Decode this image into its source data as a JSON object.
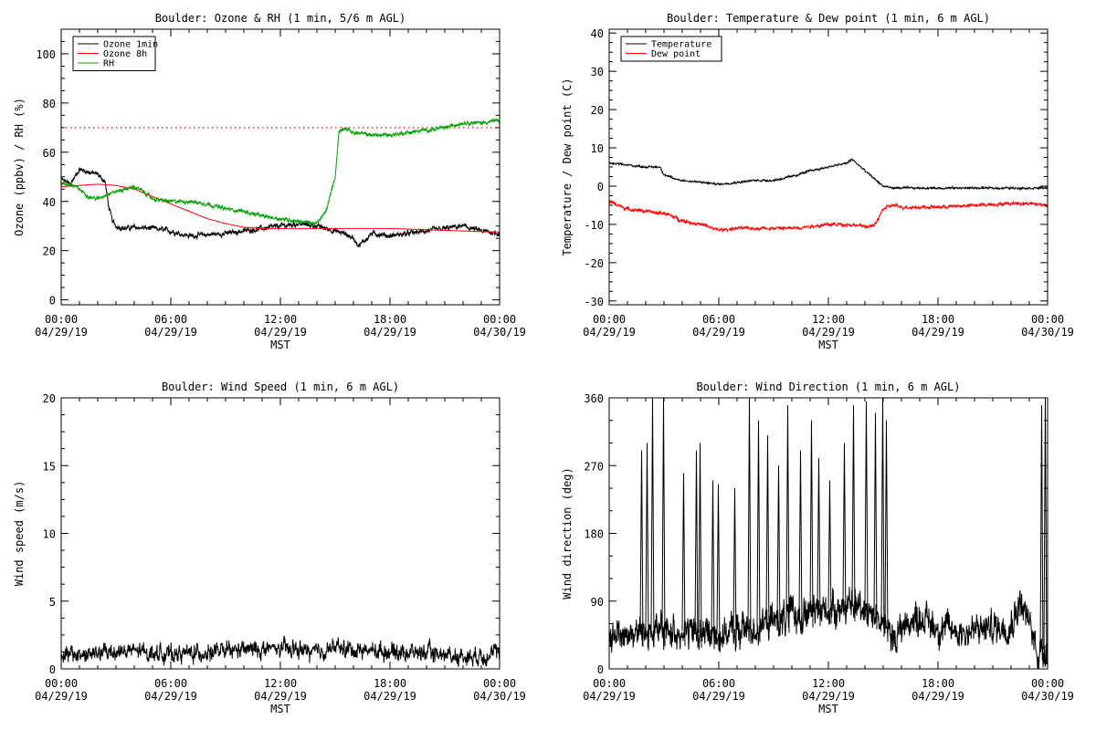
{
  "figure": {
    "background": "#ffffff"
  },
  "chart_data": [
    {
      "id": "ozone",
      "type": "line",
      "title": "Boulder: Ozone & RH (1 min, 5/6 m AGL)",
      "ylabel": "Ozone (ppbv) / RH (%)",
      "xlabel": "MST",
      "xlim": [
        0,
        24
      ],
      "ylim": [
        -2,
        110
      ],
      "yticks": [
        0,
        20,
        40,
        60,
        80,
        100
      ],
      "xticks": [
        {
          "hours": 0,
          "label": "00:00",
          "date": "04/29/19"
        },
        {
          "hours": 6,
          "label": "06:00",
          "date": "04/29/19"
        },
        {
          "hours": 12,
          "label": "12:00",
          "date": "04/29/19"
        },
        {
          "hours": 18,
          "label": "18:00",
          "date": "04/29/19"
        },
        {
          "hours": 24,
          "label": "00:00",
          "date": "04/30/19"
        }
      ],
      "legend": "top-left",
      "reference_line": {
        "y": 70,
        "color": "#ff0000",
        "style": "dotted"
      },
      "series": [
        {
          "name": "Ozone 1min",
          "color": "#000000",
          "noise": 1.2,
          "x": [
            0,
            0.5,
            1,
            1.5,
            2,
            2.4,
            2.6,
            2.8,
            3,
            3.5,
            4,
            5,
            6,
            6.5,
            7,
            8,
            9,
            10,
            11,
            12,
            13,
            14,
            15,
            15.5,
            16,
            16.3,
            17,
            18,
            19,
            20,
            21,
            22,
            22.5,
            23,
            24
          ],
          "y": [
            49,
            47,
            53,
            52,
            51,
            48,
            38,
            32,
            30,
            29,
            29.5,
            29,
            28,
            27,
            26,
            26.5,
            27,
            28,
            29,
            30,
            31,
            30,
            28,
            27,
            25,
            22,
            27,
            26,
            27,
            28,
            29,
            30,
            29,
            28,
            27
          ]
        },
        {
          "name": "Ozone 8h",
          "color": "#ff0000",
          "noise": 0,
          "x": [
            0,
            1,
            2,
            3,
            4,
            5,
            6,
            7,
            8,
            9,
            10,
            11,
            12,
            14,
            16,
            18,
            20,
            22,
            24
          ],
          "y": [
            46,
            46.5,
            47,
            46.5,
            45,
            42,
            39,
            36,
            33,
            31,
            29.5,
            29,
            29,
            29,
            29,
            29,
            28.5,
            28,
            27.5
          ]
        },
        {
          "name": "RH",
          "color": "#00a000",
          "noise": 0.9,
          "x": [
            0,
            0.5,
            1,
            1.5,
            2,
            2.5,
            3,
            3.5,
            4,
            4.5,
            5,
            6,
            7,
            8,
            9,
            10,
            11,
            12,
            13,
            14,
            14.5,
            15,
            15.2,
            15.5,
            16,
            17,
            18,
            19,
            20,
            21,
            22,
            23,
            24
          ],
          "y": [
            47,
            47,
            45,
            42,
            41,
            43,
            44,
            45,
            46,
            44,
            41,
            40,
            40,
            39,
            37,
            36,
            34,
            33,
            32,
            31,
            36,
            50,
            68,
            70,
            68,
            67,
            67,
            68,
            69,
            70,
            72,
            72,
            73
          ]
        }
      ]
    },
    {
      "id": "temperature",
      "type": "line",
      "title": "Boulder: Temperature & Dew point (1 min, 6 m AGL)",
      "ylabel": "Temperature / Dew point (C)",
      "xlabel": "MST",
      "xlim": [
        0,
        24
      ],
      "ylim": [
        -31,
        41
      ],
      "yticks": [
        -30,
        -20,
        -10,
        0,
        10,
        20,
        30,
        40
      ],
      "xticks": [
        {
          "hours": 0,
          "label": "00:00",
          "date": "04/29/19"
        },
        {
          "hours": 6,
          "label": "06:00",
          "date": "04/29/19"
        },
        {
          "hours": 12,
          "label": "12:00",
          "date": "04/29/19"
        },
        {
          "hours": 18,
          "label": "18:00",
          "date": "04/29/19"
        },
        {
          "hours": 24,
          "label": "00:00",
          "date": "04/30/19"
        }
      ],
      "legend": "top-left",
      "series": [
        {
          "name": "Temperature",
          "color": "#000000",
          "noise": 0.3,
          "x": [
            0,
            1,
            2,
            2.8,
            3,
            3.5,
            4,
            5,
            6,
            7,
            8,
            9,
            10,
            11,
            12,
            13,
            13.3,
            14,
            14.5,
            15,
            15.5,
            16,
            18,
            20,
            22,
            23,
            24
          ],
          "y": [
            6,
            5.5,
            5,
            5,
            3,
            2,
            1.5,
            1,
            0.5,
            1,
            1.5,
            1.5,
            2.5,
            4,
            5,
            6,
            7,
            4,
            2,
            0,
            -0.5,
            -0.5,
            -0.5,
            -0.5,
            -0.5,
            -0.5,
            -0.5
          ]
        },
        {
          "name": "Dew point",
          "color": "#ff0000",
          "noise": 0.5,
          "x": [
            0,
            0.5,
            1,
            2,
            2.5,
            3,
            3.5,
            4,
            5,
            6,
            7,
            8,
            9,
            10,
            11,
            12,
            13,
            14,
            14.5,
            15,
            15.5,
            16,
            18,
            20,
            22,
            23,
            24
          ],
          "y": [
            -4,
            -5,
            -6,
            -6.5,
            -7,
            -7,
            -8,
            -9,
            -10,
            -11.5,
            -11,
            -11,
            -11,
            -11,
            -10.5,
            -10,
            -10,
            -10.5,
            -10.5,
            -6,
            -5,
            -5.5,
            -5.5,
            -5,
            -4.5,
            -4.5,
            -5
          ]
        }
      ]
    },
    {
      "id": "windspeed",
      "type": "line",
      "title": "Boulder: Wind Speed (1 min, 6 m AGL)",
      "ylabel": "Wind speed (m/s)",
      "xlabel": "MST",
      "xlim": [
        0,
        24
      ],
      "ylim": [
        0,
        20
      ],
      "yticks": [
        0,
        5,
        10,
        15,
        20
      ],
      "xticks": [
        {
          "hours": 0,
          "label": "00:00",
          "date": "04/29/19"
        },
        {
          "hours": 6,
          "label": "06:00",
          "date": "04/29/19"
        },
        {
          "hours": 12,
          "label": "12:00",
          "date": "04/29/19"
        },
        {
          "hours": 18,
          "label": "18:00",
          "date": "04/29/19"
        },
        {
          "hours": 24,
          "label": "00:00",
          "date": "04/30/19"
        }
      ],
      "series": [
        {
          "name": "",
          "color": "#000000",
          "noise": 0.7,
          "floor": 0,
          "x": [
            0,
            2,
            3,
            4,
            6,
            8,
            10,
            12,
            13,
            14,
            15,
            16,
            18,
            20,
            22,
            23,
            24
          ],
          "y": [
            1.0,
            1.1,
            1.3,
            1.3,
            1.1,
            1.2,
            1.4,
            1.5,
            1.4,
            1.2,
            1.6,
            1.4,
            1.3,
            1.2,
            0.9,
            1.0,
            1.2
          ]
        }
      ]
    },
    {
      "id": "winddir",
      "type": "line",
      "title": "Boulder: Wind Direction (1 min, 6 m AGL)",
      "ylabel": "Wind direction (deg)",
      "xlabel": "MST",
      "xlim": [
        0,
        24
      ],
      "ylim": [
        0,
        360
      ],
      "yticks": [
        0,
        90,
        180,
        270,
        360
      ],
      "xticks": [
        {
          "hours": 0,
          "label": "00:00",
          "date": "04/29/19"
        },
        {
          "hours": 6,
          "label": "06:00",
          "date": "04/29/19"
        },
        {
          "hours": 12,
          "label": "12:00",
          "date": "04/29/19"
        },
        {
          "hours": 18,
          "label": "18:00",
          "date": "04/29/19"
        },
        {
          "hours": 24,
          "label": "00:00",
          "date": "04/30/19"
        }
      ],
      "series": [
        {
          "name": "",
          "color": "#000000",
          "noise": 25,
          "floor": 0,
          "ceil": 360,
          "x": [
            0,
            2,
            4,
            6,
            8,
            10,
            12,
            14,
            15,
            15.5,
            16,
            17,
            18,
            19,
            20,
            21,
            22,
            22.5,
            23,
            23.5,
            24
          ],
          "y": [
            45,
            50,
            50,
            45,
            55,
            70,
            80,
            85,
            60,
            40,
            55,
            70,
            55,
            50,
            50,
            55,
            60,
            90,
            60,
            20,
            30
          ]
        }
      ],
      "spikes": [
        {
          "x": 1.7,
          "y": 290
        },
        {
          "x": 2.0,
          "y": 300
        },
        {
          "x": 2.3,
          "y": 360
        },
        {
          "x": 2.9,
          "y": 360
        },
        {
          "x": 4.0,
          "y": 260
        },
        {
          "x": 4.7,
          "y": 290
        },
        {
          "x": 4.9,
          "y": 300
        },
        {
          "x": 5.6,
          "y": 250
        },
        {
          "x": 5.9,
          "y": 245
        },
        {
          "x": 6.8,
          "y": 240
        },
        {
          "x": 7.6,
          "y": 360
        },
        {
          "x": 8.1,
          "y": 330
        },
        {
          "x": 8.6,
          "y": 310
        },
        {
          "x": 9.2,
          "y": 270
        },
        {
          "x": 9.7,
          "y": 350
        },
        {
          "x": 10.4,
          "y": 290
        },
        {
          "x": 11.0,
          "y": 330
        },
        {
          "x": 11.4,
          "y": 280
        },
        {
          "x": 12.0,
          "y": 250
        },
        {
          "x": 12.8,
          "y": 300
        },
        {
          "x": 13.3,
          "y": 350
        },
        {
          "x": 14.0,
          "y": 355
        },
        {
          "x": 14.5,
          "y": 340
        },
        {
          "x": 14.9,
          "y": 360
        },
        {
          "x": 15.1,
          "y": 330
        },
        {
          "x": 23.6,
          "y": 350
        },
        {
          "x": 23.8,
          "y": 360
        }
      ]
    }
  ]
}
